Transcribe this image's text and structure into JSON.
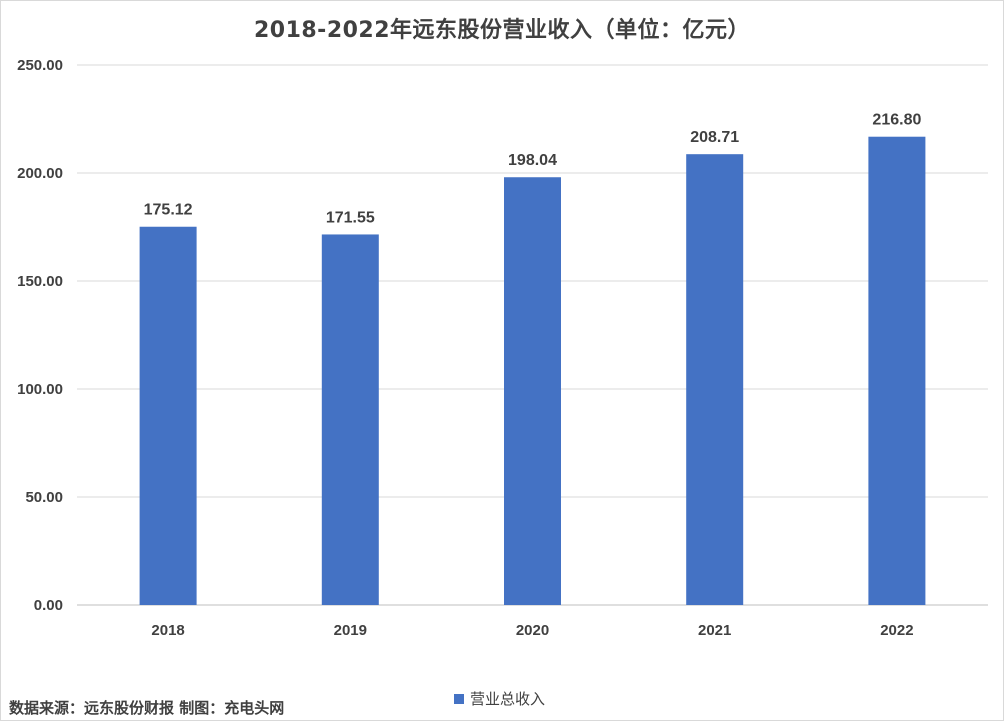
{
  "chart_data": {
    "type": "bar",
    "title": "2018-2022年远东股份营业收入（单位：亿元）",
    "categories": [
      "2018",
      "2019",
      "2020",
      "2021",
      "2022"
    ],
    "series": [
      {
        "name": "营业总收入",
        "values": [
          175.12,
          171.55,
          198.04,
          208.71,
          216.8
        ],
        "data_labels": [
          "175.12",
          "171.55",
          "198.04",
          "208.71",
          "216.80"
        ],
        "color": "#4472c4"
      }
    ],
    "ylim": [
      0,
      250
    ],
    "yticks": [
      0,
      50,
      100,
      150,
      200,
      250
    ],
    "ytick_labels": [
      "0.00",
      "50.00",
      "100.00",
      "150.00",
      "200.00",
      "250.00"
    ],
    "grid": true,
    "legend_position": "bottom",
    "xlabel": "",
    "ylabel": ""
  },
  "footer": {
    "source": "数据来源：远东股份财报  制图：充电头网"
  }
}
